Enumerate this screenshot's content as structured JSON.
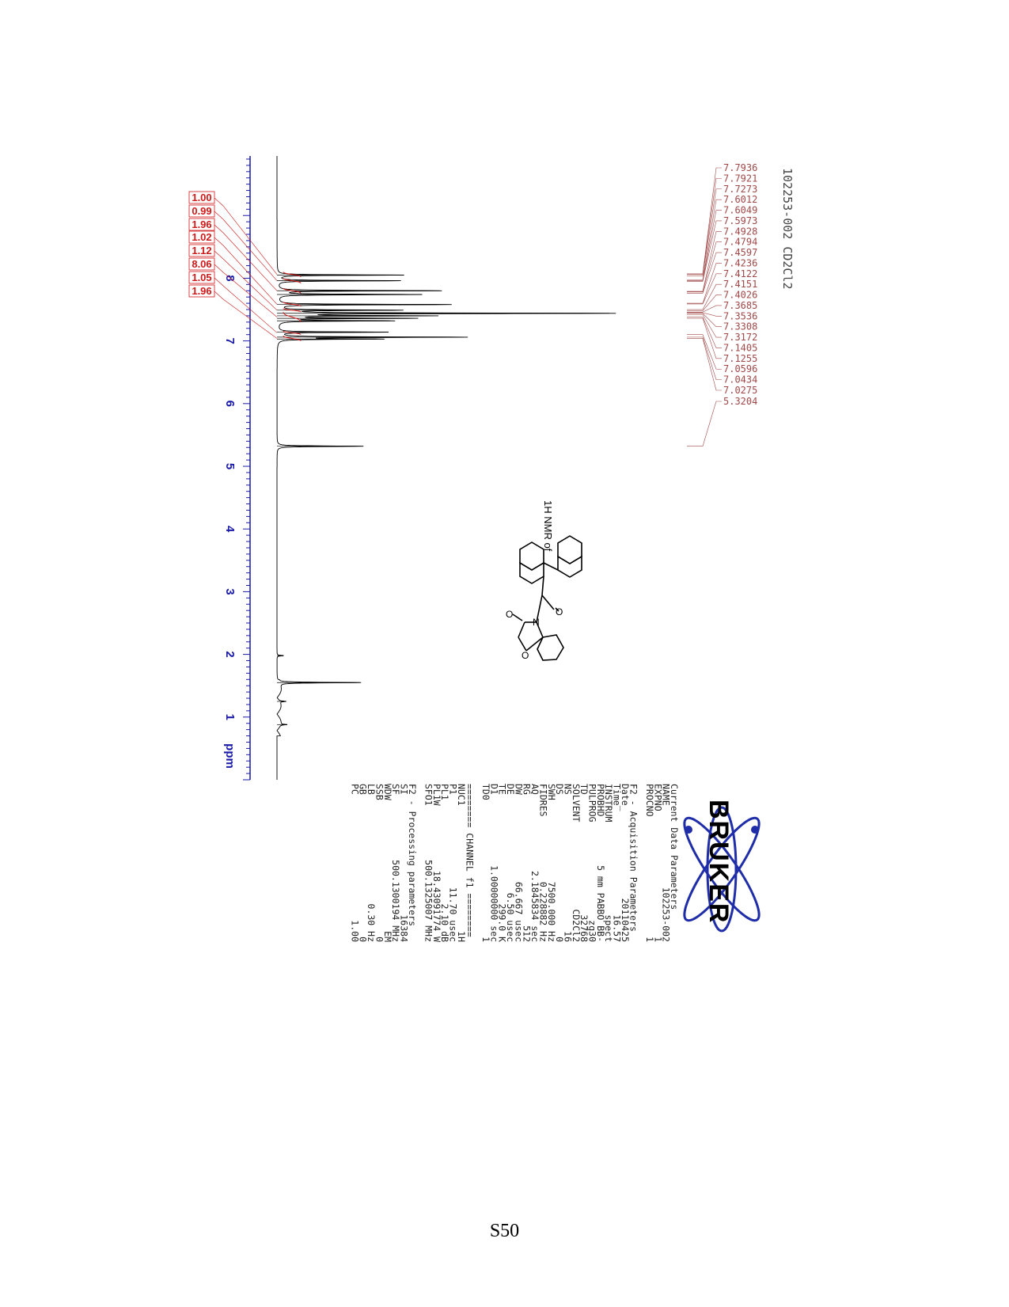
{
  "chart_data": {
    "type": "line",
    "title": "",
    "xlabel": "ppm",
    "ylabel": "",
    "xlim": [
      9.95,
      0.0
    ],
    "x_ticks": [
      "8",
      "7",
      "6",
      "5",
      "4",
      "3",
      "2",
      "1"
    ],
    "grid": false,
    "series": [
      {
        "peaks": [
          {
            "ppm": 8.05,
            "height": 0.38
          },
          {
            "ppm": 7.96,
            "height": 0.37
          },
          {
            "ppm": 7.8,
            "height": 0.49
          },
          {
            "ppm": 7.74,
            "height": 0.43
          },
          {
            "ppm": 7.58,
            "height": 0.52
          },
          {
            "ppm": 7.49,
            "height": 0.36
          },
          {
            "ppm": 7.44,
            "height": 1.0
          },
          {
            "ppm": 7.4,
            "height": 0.45
          },
          {
            "ppm": 7.36,
            "height": 0.4
          },
          {
            "ppm": 7.32,
            "height": 0.34
          },
          {
            "ppm": 7.14,
            "height": 0.33
          },
          {
            "ppm": 7.06,
            "height": 0.56
          },
          {
            "ppm": 7.03,
            "height": 0.3
          },
          {
            "ppm": 5.32,
            "height": 0.26
          },
          {
            "ppm": 1.98,
            "height": 0.02
          },
          {
            "ppm": 1.55,
            "height": 0.25
          },
          {
            "ppm": 1.25,
            "height": 0.02
          },
          {
            "ppm": 0.88,
            "height": 0.02
          }
        ]
      }
    ],
    "integrals": [
      {
        "value": "1.00",
        "from": 8.1,
        "to": 8.02
      },
      {
        "value": "0.99",
        "from": 8.0,
        "to": 7.92
      },
      {
        "value": "1.96",
        "from": 7.84,
        "to": 7.76
      },
      {
        "value": "1.02",
        "from": 7.62,
        "to": 7.55
      },
      {
        "value": "1.12",
        "from": 7.52,
        "to": 7.46
      },
      {
        "value": "8.06",
        "from": 7.46,
        "to": 7.3
      },
      {
        "value": "1.05",
        "from": 7.16,
        "to": 7.1
      },
      {
        "value": "1.96",
        "from": 7.08,
        "to": 7.0
      }
    ],
    "peak_labels": [
      "7.7936",
      "7.7921",
      "7.7273",
      "7.6012",
      "7.6049",
      "7.5973",
      "7.4928",
      "7.4794",
      "7.4597",
      "7.4236",
      "7.4122",
      "7.4151",
      "7.4026",
      "7.3685",
      "7.3536",
      "7.3308",
      "7.3172",
      "7.1405",
      "7.1255",
      "7.0596",
      "7.0434",
      "7.0275",
      "5.3204"
    ],
    "peak_label_ppm": [
      8.07,
      8.06,
      8.04,
      7.97,
      7.96,
      7.95,
      7.79,
      7.78,
      7.76,
      7.6,
      7.59,
      7.5,
      7.48,
      7.46,
      7.45,
      7.44,
      7.42,
      7.38,
      7.36,
      7.1,
      7.06,
      7.04,
      5.32
    ],
    "sample_label": "102253-002 CD2Cl2",
    "annotation": "1H NMR of"
  },
  "logo": {
    "text": "BRUKER"
  },
  "parameters": {
    "current": {
      "heading": "Current Data Parameters",
      "rows": [
        {
          "key": "NAME",
          "value": "102253-002"
        },
        {
          "key": "EXPNO",
          "value": "1"
        },
        {
          "key": "PROCNO",
          "value": "1"
        }
      ]
    },
    "acquisition": {
      "heading": "F2 - Acquisition Parameters",
      "rows": [
        {
          "key": "Date_",
          "value": "20110425"
        },
        {
          "key": "Time",
          "value": "16.57"
        },
        {
          "key": "INSTRUM",
          "value": "spect"
        },
        {
          "key": "PROBHD",
          "value": "5 mm PABBO BB-"
        },
        {
          "key": "PULPROG",
          "value": "zg30"
        },
        {
          "key": "TD",
          "value": "32768"
        },
        {
          "key": "SOLVENT",
          "value": "CD2Cl2"
        },
        {
          "key": "NS",
          "value": "16"
        },
        {
          "key": "DS",
          "value": "0"
        },
        {
          "key": "SWH",
          "value": "7500.000 Hz"
        },
        {
          "key": "FIDRES",
          "value": "0.228882 Hz"
        },
        {
          "key": "AQ",
          "value": "2.1845834 sec"
        },
        {
          "key": "RG",
          "value": "512"
        },
        {
          "key": "DW",
          "value": "66.667 usec"
        },
        {
          "key": "DE",
          "value": "6.50 usec"
        },
        {
          "key": "TE",
          "value": "299.0 K"
        },
        {
          "key": "D1",
          "value": "1.00000000 sec"
        },
        {
          "key": "TD0",
          "value": "1"
        }
      ]
    },
    "channel": {
      "heading": "======== CHANNEL f1 ========",
      "rows": [
        {
          "key": "NUC1",
          "value": "1H"
        },
        {
          "key": "P1",
          "value": "11.70 usec"
        },
        {
          "key": "PL1",
          "value": "2.10 dB"
        },
        {
          "key": "PL1W",
          "value": "18.43091774 W"
        },
        {
          "key": "SFO1",
          "value": "500.1325007 MHz"
        }
      ]
    },
    "processing": {
      "heading": "F2 - Processing parameters",
      "rows": [
        {
          "key": "SI",
          "value": "16384"
        },
        {
          "key": "SF",
          "value": "500.1300194 MHz"
        },
        {
          "key": "WDW",
          "value": "EM"
        },
        {
          "key": "SSB",
          "value": "0"
        },
        {
          "key": "LB",
          "value": "0.30 Hz"
        },
        {
          "key": "GB",
          "value": "0"
        },
        {
          "key": "PC",
          "value": "1.00"
        }
      ]
    }
  },
  "page": {
    "number": "S50"
  },
  "colors": {
    "axis": "#1a1aa8",
    "integral": "#d01818",
    "peak_label": "#a04848",
    "spectrum": "#000000"
  }
}
